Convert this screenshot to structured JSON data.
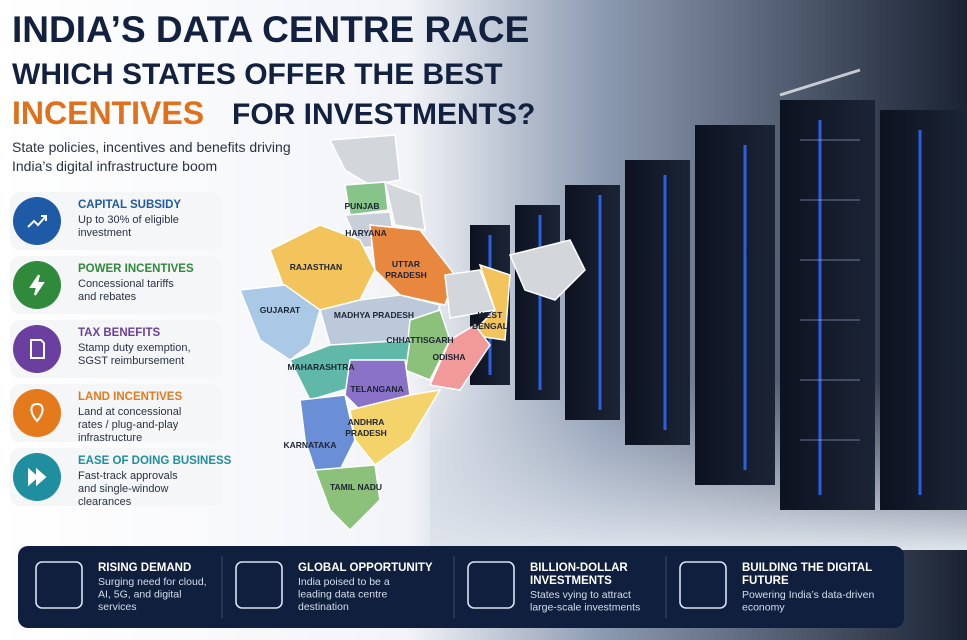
{
  "header": {
    "title_line1": "INDIA’S DATA CENTRE RACE",
    "title_line2": "WHICH STATES OFFER THE BEST",
    "title_highlight": "INCENTIVES",
    "title_rest": "FOR INVESTMENTS?",
    "subtitle": [
      "State policies, incentives and benefits driving",
      "India’s digital infrastructure boom"
    ]
  },
  "incentives": [
    {
      "title": "CAPITAL SUBSIDY",
      "description": [
        "Up to 30% of eligible",
        "investment"
      ]
    },
    {
      "title": "POWER INCENTIVES",
      "description": [
        "Concessional tariffs",
        "and rebates"
      ]
    },
    {
      "title": "TAX BENEFITS",
      "description": [
        "Stamp duty exemption,",
        "SGST reimbursement"
      ]
    },
    {
      "title": "LAND INCENTIVES",
      "description": [
        "Land at concessional",
        "rates / plug-and-play",
        "infrastructure"
      ]
    },
    {
      "title": "EASE OF DOING BUSINESS",
      "description": [
        "Fast-track approvals",
        "and single-window",
        "clearances"
      ]
    }
  ],
  "map": {
    "states": [
      "PUNJAB",
      "HARYANA",
      "RAJASTHAN",
      "UTTAR",
      "PRADESH",
      "GUJARAT",
      "MADHYA PRADESH",
      "WEST",
      "BENGAL",
      "CHHATTISGARH",
      "ODISHA",
      "MAHARASHTRA",
      "TELANGANA",
      "ANDHRA",
      "PRADESH",
      "KARNATAKA",
      "TAMIL NADU"
    ]
  },
  "footer": [
    {
      "title": [
        "RISING DEMAND"
      ],
      "description": [
        "Surging need for cloud,",
        "AI, 5G, and digital",
        "services"
      ]
    },
    {
      "title": [
        "GLOBAL OPPORTUNITY"
      ],
      "description": [
        "India poised to be a",
        "leading data centre",
        "destination"
      ]
    },
    {
      "title": [
        "BILLION-DOLLAR",
        "INVESTMENTS"
      ],
      "description": [
        "States vying to attract",
        "large-scale investments"
      ]
    },
    {
      "title": [
        "BUILDING THE DIGITAL",
        "FUTURE"
      ],
      "description": [
        "Powering India’s data-driven",
        "economy"
      ]
    }
  ]
}
